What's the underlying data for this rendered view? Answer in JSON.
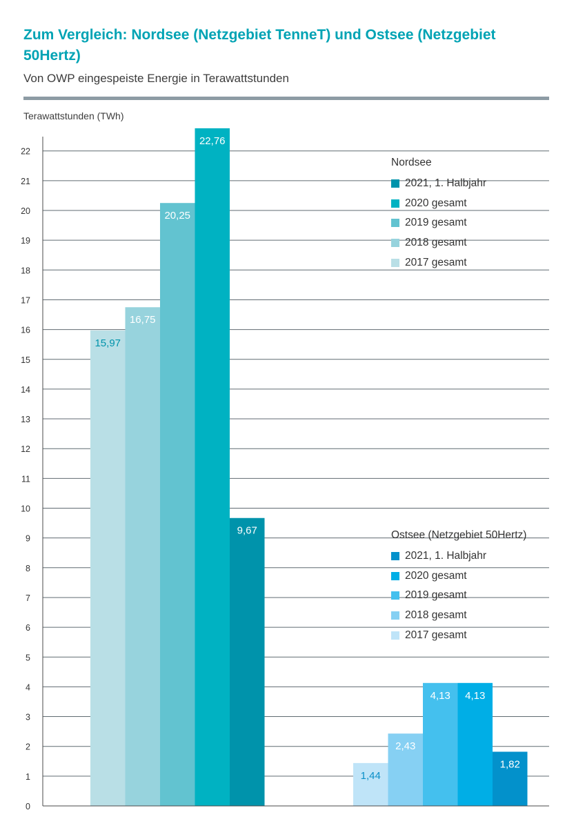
{
  "header": {
    "title": "Zum Vergleich: Nordsee (Netzgebiet TenneT) und Ostsee (Netzgebiet 50Hertz)",
    "subtitle": "Von OWP eingespeiste Energie in Terawattstunden",
    "unit_label": "Terawattstunden (TWh)"
  },
  "chart_data": {
    "type": "bar",
    "ylabel": "Terawattstunden (TWh)",
    "ylim": [
      0,
      22
    ],
    "yticks": [
      "0",
      "1",
      "2",
      "3",
      "4",
      "5",
      "6",
      "7",
      "8",
      "9",
      "10",
      "11",
      "12",
      "13",
      "14",
      "15",
      "16",
      "17",
      "18",
      "19",
      "20",
      "21",
      "22"
    ],
    "grid": true,
    "groups": [
      {
        "name": "Nordsee",
        "legend_title": "Nordsee",
        "bars": [
          {
            "label": "2017 gesamt",
            "value": 15.97,
            "display": "15,97",
            "color": "#b9dfe6",
            "text_color": "#0093ab"
          },
          {
            "label": "2018 gesamt",
            "value": 16.75,
            "display": "16,75",
            "color": "#97d3dd",
            "text_color": "#ffffff"
          },
          {
            "label": "2019 gesamt",
            "value": 20.25,
            "display": "20,25",
            "color": "#62c3d0",
            "text_color": "#ffffff"
          },
          {
            "label": "2020 gesamt",
            "value": 22.76,
            "display": "22,76",
            "color": "#00b2c2",
            "text_color": "#ffffff"
          },
          {
            "label": "2021, 1. Halbjahr",
            "value": 9.67,
            "display": "9,67",
            "color": "#0093ab",
            "text_color": "#ffffff"
          }
        ]
      },
      {
        "name": "Ostsee (Netzgebiet 50Hertz)",
        "legend_title": "Ostsee (Netzgebiet 50Hertz)",
        "bars": [
          {
            "label": "2017 gesamt",
            "value": 1.44,
            "display": "1,44",
            "color": "#bfe4f8",
            "text_color": "#0a8fc8"
          },
          {
            "label": "2018 gesamt",
            "value": 2.43,
            "display": "2,43",
            "color": "#86d0f3",
            "text_color": "#ffffff"
          },
          {
            "label": "2019 gesamt",
            "value": 4.13,
            "display": "4,13",
            "color": "#44c0ee",
            "text_color": "#ffffff"
          },
          {
            "label": "2020 gesamt",
            "value": 4.13,
            "display": "4,13",
            "color": "#00aee6",
            "text_color": "#ffffff"
          },
          {
            "label": "2021, 1. Halbjahr",
            "value": 1.82,
            "display": "1,82",
            "color": "#0391cb",
            "text_color": "#ffffff"
          }
        ]
      }
    ],
    "legend_placement": "right"
  },
  "colors": {
    "title": "#00a3b4",
    "rule": "#8d9ba4",
    "grid": "#5f6a70"
  }
}
